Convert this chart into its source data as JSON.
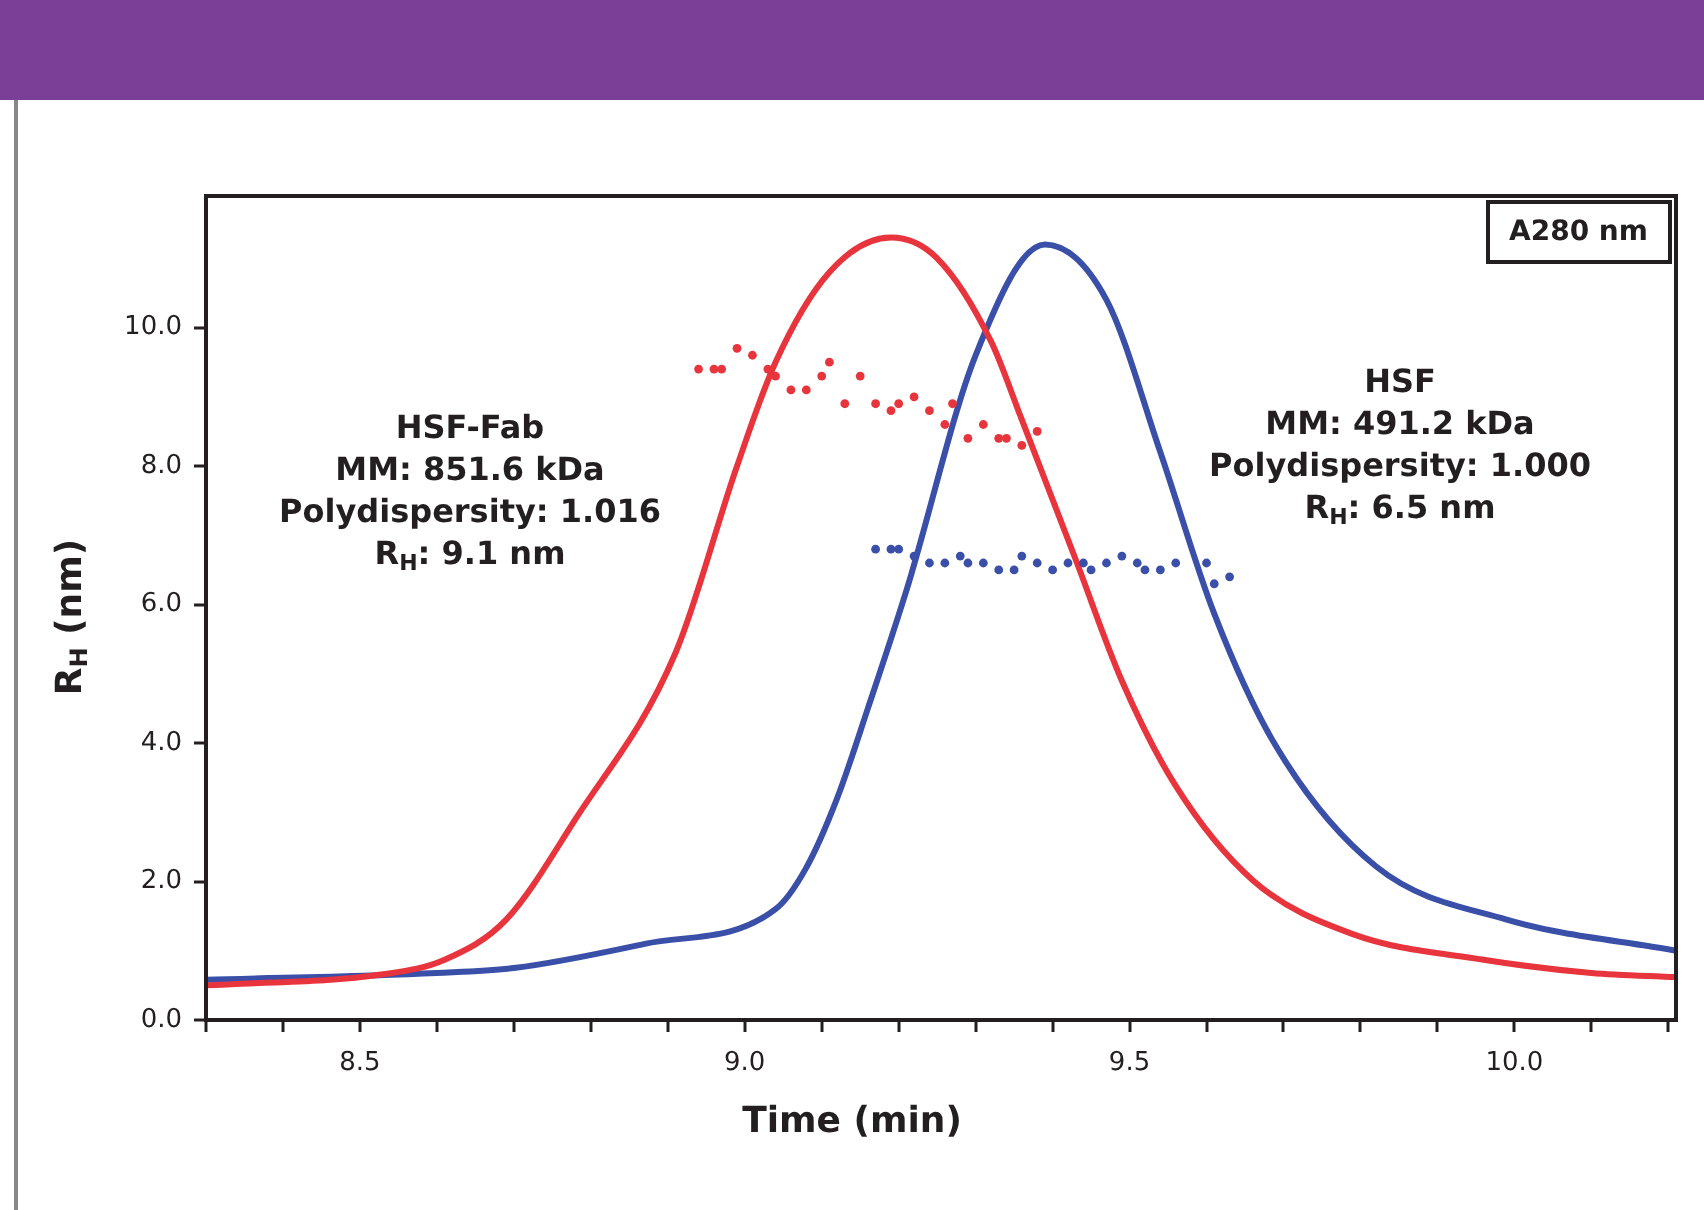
{
  "chart_data": {
    "type": "line",
    "xlabel": "Time (min)",
    "ylabel": "R$_{H}$ (nm)",
    "xlim": [
      8.3,
      10.21
    ],
    "xticks": [
      {
        "value": 8.3,
        "label": null
      },
      {
        "value": 8.4,
        "label": null
      },
      {
        "value": 8.5,
        "label": "8.5"
      },
      {
        "value": 8.6,
        "label": null
      },
      {
        "value": 8.7,
        "label": null
      },
      {
        "value": 8.8,
        "label": null
      },
      {
        "value": 8.9,
        "label": null
      },
      {
        "value": 9.0,
        "label": "9.0"
      },
      {
        "value": 9.1,
        "label": null
      },
      {
        "value": 9.2,
        "label": null
      },
      {
        "value": 9.3,
        "label": null
      },
      {
        "value": 9.4,
        "label": null
      },
      {
        "value": 9.5,
        "label": "9.5"
      },
      {
        "value": 9.6,
        "label": null
      },
      {
        "value": 9.7,
        "label": null
      },
      {
        "value": 9.8,
        "label": null
      },
      {
        "value": 9.9,
        "label": null
      },
      {
        "value": 10.0,
        "label": "10.0"
      },
      {
        "value": 10.1,
        "label": null
      },
      {
        "value": 10.2,
        "label": null
      }
    ],
    "ylim": [
      0,
      11.9
    ],
    "yticks": [
      {
        "value": 0,
        "label": "0.0"
      },
      {
        "value": 2,
        "label": "2.0"
      },
      {
        "value": 4,
        "label": "4.0"
      },
      {
        "value": 6,
        "label": "6.0"
      },
      {
        "value": 8,
        "label": "8.0"
      },
      {
        "value": 10,
        "label": "10.0"
      }
    ],
    "grid": false,
    "legend": false,
    "annotations": [
      "HSF-Fab\nMM: 851.6 kDa\nPolydispersity: 1.016\nR$_{H}$: 9.1 nm",
      "HSF\nMM: 491.2 kDa\nPolydispersity: 1.000\nR$_{H}$: 6.5 nm",
      "A280 nm"
    ],
    "series": [
      {
        "type": "line",
        "marker": "none",
        "color": "#e8343c",
        "x": [
          8.3,
          8.53,
          8.61,
          8.69,
          8.78,
          8.91,
          8.99,
          9.04,
          9.11,
          9.19,
          9.25,
          9.32,
          9.36,
          9.43,
          9.49,
          9.56,
          9.66,
          9.79,
          9.96,
          10.1,
          10.21
        ],
        "values": [
          0.5,
          0.66,
          0.87,
          1.45,
          2.9,
          5.3,
          8.0,
          9.5,
          10.8,
          11.3,
          11.0,
          9.8,
          8.67,
          6.65,
          4.9,
          3.38,
          2.02,
          1.24,
          0.87,
          0.68,
          0.62
        ]
      },
      {
        "type": "line",
        "marker": "none",
        "color": "#3a4fa8",
        "x": [
          8.3,
          8.6,
          8.7,
          8.87,
          9.04,
          9.08,
          9.12,
          9.16,
          9.21,
          9.3,
          9.39,
          9.47,
          9.54,
          9.61,
          9.69,
          9.82,
          9.99,
          10.21
        ],
        "values": [
          0.58,
          0.68,
          0.75,
          1.1,
          1.6,
          2.2,
          3.2,
          4.5,
          6.2,
          9.6,
          11.2,
          10.4,
          8.2,
          5.87,
          3.96,
          2.22,
          1.45,
          1.0
        ]
      },
      {
        "type": "scatter",
        "marker": "circle",
        "color": "#e8343c",
        "x": [
          8.94,
          8.96,
          8.97,
          8.99,
          9.01,
          9.03,
          9.04,
          9.06,
          9.08,
          9.1,
          9.11,
          9.13,
          9.15,
          9.17,
          9.19,
          9.2,
          9.22,
          9.24,
          9.26,
          9.27,
          9.29,
          9.31,
          9.33,
          9.34,
          9.36,
          9.38
        ],
        "values": [
          9.4,
          9.4,
          9.4,
          9.7,
          9.6,
          9.4,
          9.3,
          9.1,
          9.1,
          9.3,
          9.5,
          8.9,
          9.3,
          8.9,
          8.8,
          8.9,
          9.0,
          8.8,
          8.6,
          8.9,
          8.4,
          8.6,
          8.4,
          8.4,
          8.3,
          8.5
        ]
      },
      {
        "type": "scatter",
        "marker": "circle",
        "color": "#3a4fa8",
        "x": [
          9.17,
          9.19,
          9.2,
          9.22,
          9.24,
          9.26,
          9.28,
          9.29,
          9.31,
          9.33,
          9.35,
          9.36,
          9.38,
          9.4,
          9.42,
          9.44,
          9.45,
          9.47,
          9.49,
          9.51,
          9.52,
          9.54,
          9.56,
          9.6,
          9.61,
          9.63
        ],
        "values": [
          6.8,
          6.8,
          6.8,
          6.7,
          6.6,
          6.6,
          6.7,
          6.6,
          6.6,
          6.5,
          6.5,
          6.7,
          6.6,
          6.5,
          6.6,
          6.6,
          6.5,
          6.6,
          6.7,
          6.6,
          6.5,
          6.5,
          6.6,
          6.6,
          6.3,
          6.4
        ]
      }
    ]
  }
}
